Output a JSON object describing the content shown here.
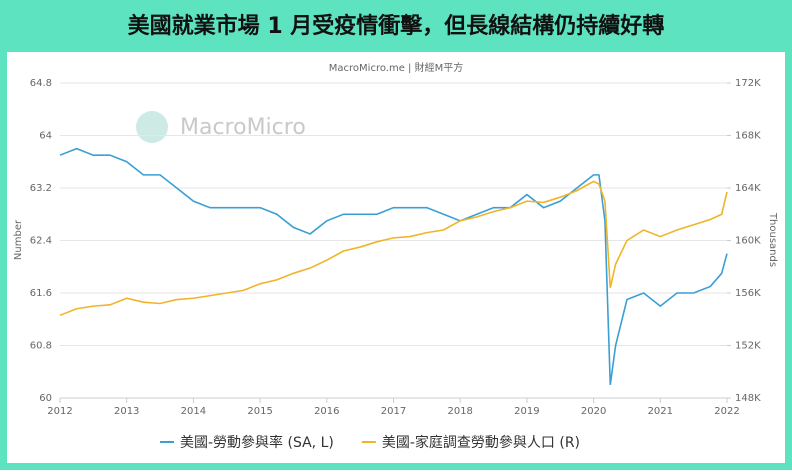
{
  "chart_data": {
    "type": "line",
    "title": "美國就業市場 1 月受疫情衝擊，但長線結構仍持續好轉",
    "subtitle": "MacroMicro.me | 財經M平方",
    "watermark": "MacroMicro",
    "y_label": "Number",
    "y2_label": "Thousands",
    "xlim": [
      2012,
      2022
    ],
    "xticks": [
      2012,
      2013,
      2014,
      2015,
      2016,
      2017,
      2018,
      2019,
      2020,
      2021,
      2022
    ],
    "ylim": [
      60,
      64.8
    ],
    "yticks": [
      60,
      60.8,
      61.6,
      62.4,
      63.2,
      64,
      64.8
    ],
    "y2lim": [
      148,
      172
    ],
    "y2ticks": [
      {
        "value": 148,
        "label": "148K"
      },
      {
        "value": 152,
        "label": "152K"
      },
      {
        "value": 156,
        "label": "156K"
      },
      {
        "value": 160,
        "label": "160K"
      },
      {
        "value": 164,
        "label": "164K"
      },
      {
        "value": 168,
        "label": "168K"
      },
      {
        "value": 172,
        "label": "172K"
      }
    ],
    "grid": true,
    "x": [
      2012,
      2012.25,
      2012.5,
      2012.75,
      2013,
      2013.25,
      2013.5,
      2013.75,
      2014,
      2014.25,
      2014.5,
      2014.75,
      2015,
      2015.25,
      2015.5,
      2015.75,
      2016,
      2016.25,
      2016.5,
      2016.75,
      2017,
      2017.25,
      2017.5,
      2017.75,
      2018,
      2018.25,
      2018.5,
      2018.75,
      2019,
      2019.25,
      2019.5,
      2019.75,
      2020,
      2020.08,
      2020.17,
      2020.25,
      2020.33,
      2020.5,
      2020.75,
      2021,
      2021.25,
      2021.5,
      2021.75,
      2021.92,
      2022
    ],
    "series": [
      {
        "name": "美國-勞動參與率 (SA, L)",
        "color": "#3a9fd3",
        "axis": "y",
        "values": [
          63.7,
          63.8,
          63.7,
          63.7,
          63.6,
          63.4,
          63.4,
          63.2,
          63.0,
          62.9,
          62.9,
          62.9,
          62.9,
          62.8,
          62.6,
          62.5,
          62.7,
          62.8,
          62.8,
          62.8,
          62.9,
          62.9,
          62.9,
          62.8,
          62.7,
          62.8,
          62.9,
          62.9,
          63.1,
          62.9,
          63.0,
          63.2,
          63.4,
          63.4,
          62.7,
          60.2,
          60.8,
          61.5,
          61.6,
          61.4,
          61.6,
          61.6,
          61.7,
          61.9,
          62.2
        ]
      },
      {
        "name": "美國-家庭調查勞動參與人口 (R)",
        "color": "#f0b428",
        "axis": "y2",
        "values": [
          154.3,
          154.8,
          155.0,
          155.1,
          155.6,
          155.3,
          155.2,
          155.5,
          155.6,
          155.8,
          156.0,
          156.2,
          156.7,
          157.0,
          157.5,
          157.9,
          158.5,
          159.2,
          159.5,
          159.9,
          160.2,
          160.3,
          160.6,
          160.8,
          161.5,
          161.8,
          162.2,
          162.5,
          163.0,
          162.9,
          163.3,
          163.8,
          164.5,
          164.3,
          163.0,
          156.4,
          158.2,
          160.0,
          160.8,
          160.3,
          160.8,
          161.2,
          161.6,
          162.0,
          163.7
        ]
      }
    ]
  }
}
